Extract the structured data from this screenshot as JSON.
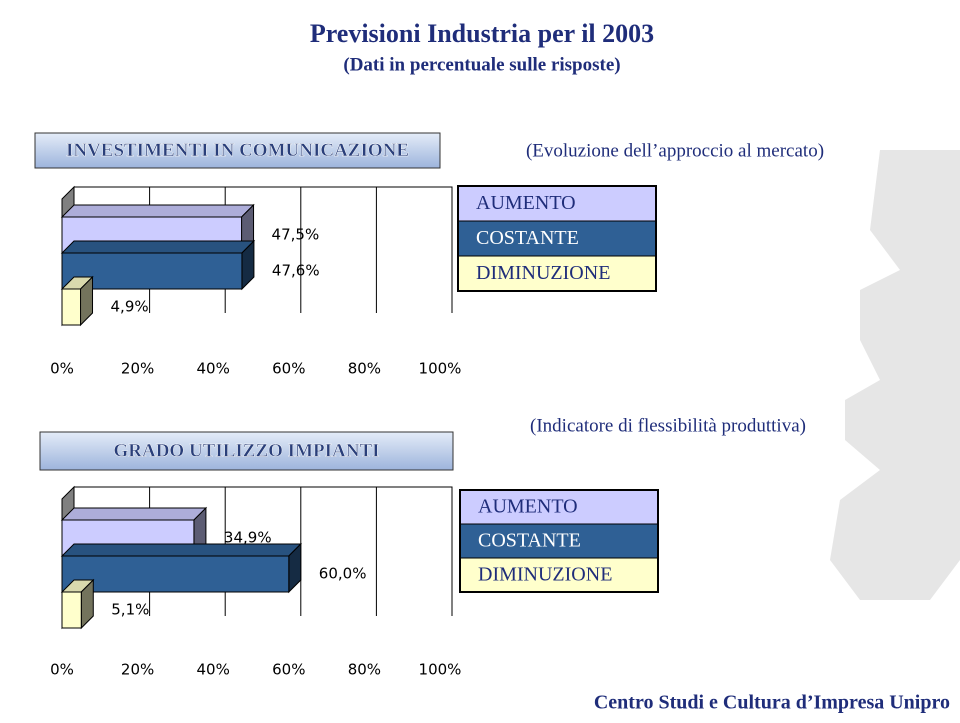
{
  "header": {
    "title": "Previsioni Industria per il 2003",
    "subtitle": "(Dati in percentuale sulle risposte)"
  },
  "footer": "Centro Studi e Cultura d’Impresa Unipro",
  "chart_data": [
    {
      "type": "bar",
      "orientation": "horizontal",
      "title": "INVESTIMENTI IN COMUNICAZIONE",
      "subtitle": "(Evoluzione dell’approccio al mercato)",
      "series": [
        {
          "name": "AUMENTO",
          "color": "#ccccff",
          "values": [
            47.5
          ],
          "value_labels": [
            "47,5%"
          ]
        },
        {
          "name": "COSTANTE",
          "color": "#2f6095",
          "values": [
            47.6
          ],
          "value_labels": [
            "47,6%"
          ]
        },
        {
          "name": "DIMINUZIONE",
          "color": "#ffffcc",
          "values": [
            4.9
          ],
          "value_labels": [
            "4,9%"
          ]
        }
      ],
      "xlim": [
        0,
        100
      ],
      "xticks": [
        {
          "value": 0,
          "label": "0%"
        },
        {
          "value": 20,
          "label": "20%"
        },
        {
          "value": 40,
          "label": "40%"
        },
        {
          "value": 60,
          "label": "60%"
        },
        {
          "value": 80,
          "label": "80%"
        },
        {
          "value": 100,
          "label": "100%"
        }
      ],
      "grid": true,
      "legend": "right"
    },
    {
      "type": "bar",
      "orientation": "horizontal",
      "title": "GRADO UTILIZZO IMPIANTI",
      "subtitle": "(Indicatore di flessibilità produttiva)",
      "series": [
        {
          "name": "AUMENTO",
          "color": "#ccccff",
          "values": [
            34.9
          ],
          "value_labels": [
            "34,9%"
          ]
        },
        {
          "name": "COSTANTE",
          "color": "#2f6095",
          "values": [
            60.0
          ],
          "value_labels": [
            "60,0%"
          ]
        },
        {
          "name": "DIMINUZIONE",
          "color": "#ffffcc",
          "values": [
            5.1
          ],
          "value_labels": [
            "5,1%"
          ]
        }
      ],
      "xlim": [
        0,
        100
      ],
      "xticks": [
        {
          "value": 0,
          "label": "0%"
        },
        {
          "value": 20,
          "label": "20%"
        },
        {
          "value": 40,
          "label": "40%"
        },
        {
          "value": 60,
          "label": "60%"
        },
        {
          "value": 80,
          "label": "80%"
        },
        {
          "value": 100,
          "label": "100%"
        }
      ],
      "grid": true,
      "legend": "right"
    }
  ]
}
